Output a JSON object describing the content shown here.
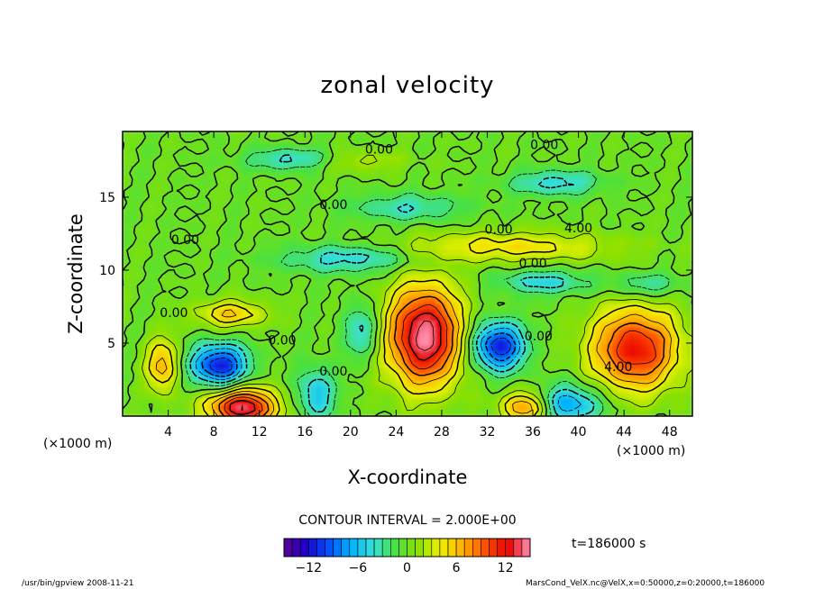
{
  "chart_data": {
    "type": "heatmap",
    "title": "zonal velocity",
    "xlabel": "X-coordinate",
    "ylabel": "Z-coordinate",
    "x_unit": "(×1000 m)",
    "y_unit": "(×1000 m)",
    "xlim": [
      0,
      50
    ],
    "ylim": [
      0,
      19.5
    ],
    "x_ticks": [
      4,
      8,
      12,
      16,
      20,
      24,
      28,
      32,
      36,
      40,
      44,
      48
    ],
    "y_ticks": [
      5,
      10,
      15
    ],
    "contour_interval_text": "CONTOUR INTERVAL = 2.000E+00",
    "contour_labels": [
      {
        "text": "0.00",
        "x": 22.5,
        "z": 18.3
      },
      {
        "text": "0.00",
        "x": 37.0,
        "z": 18.6
      },
      {
        "text": "0.00",
        "x": 18.5,
        "z": 14.5
      },
      {
        "text": "0.00",
        "x": 33.0,
        "z": 12.8
      },
      {
        "text": "4.00",
        "x": 40.0,
        "z": 12.9
      },
      {
        "text": "0.00",
        "x": 5.5,
        "z": 12.1
      },
      {
        "text": "0.00",
        "x": 36.0,
        "z": 10.5
      },
      {
        "text": "0.00",
        "x": 4.5,
        "z": 7.1
      },
      {
        "text": "0.00",
        "x": 14.0,
        "z": 5.2
      },
      {
        "text": "0.00",
        "x": 18.5,
        "z": 3.1
      },
      {
        "text": "0.00",
        "x": 36.5,
        "z": 5.5
      },
      {
        "text": "4.00",
        "x": 43.5,
        "z": 3.4
      }
    ],
    "features": [
      {
        "x": 26.5,
        "z": 5.5,
        "rx": 3.2,
        "rz": 3.4,
        "amp": 15
      },
      {
        "x": 45.0,
        "z": 4.6,
        "rx": 3.8,
        "rz": 2.8,
        "amp": 12
      },
      {
        "x": 10.5,
        "z": 0.6,
        "rx": 3.0,
        "rz": 1.3,
        "amp": 14
      },
      {
        "x": 35.5,
        "z": 0.6,
        "rx": 2.2,
        "rz": 1.1,
        "amp": 9
      },
      {
        "x": 3.5,
        "z": 3.5,
        "rx": 1.4,
        "rz": 1.8,
        "amp": 7
      },
      {
        "x": 9.5,
        "z": 7.0,
        "rx": 3.0,
        "rz": 0.9,
        "amp": 6
      },
      {
        "x": 34.0,
        "z": 11.6,
        "rx": 9.0,
        "rz": 1.0,
        "amp": 5
      },
      {
        "x": 8.5,
        "z": 3.5,
        "rx": 2.4,
        "rz": 1.4,
        "amp": -12
      },
      {
        "x": 33.0,
        "z": 4.8,
        "rx": 2.2,
        "rz": 1.6,
        "amp": -12
      },
      {
        "x": 39.0,
        "z": 0.8,
        "rx": 3.0,
        "rz": 1.3,
        "amp": -8
      },
      {
        "x": 17.0,
        "z": 1.5,
        "rx": 1.6,
        "rz": 1.8,
        "amp": -6
      },
      {
        "x": 21.0,
        "z": 5.8,
        "rx": 1.5,
        "rz": 1.8,
        "amp": -5
      },
      {
        "x": 15.0,
        "z": 17.6,
        "rx": 4.0,
        "rz": 0.7,
        "amp": -5
      },
      {
        "x": 38.0,
        "z": 16.0,
        "rx": 4.0,
        "rz": 0.8,
        "amp": -5
      },
      {
        "x": 25.0,
        "z": 14.3,
        "rx": 5.0,
        "rz": 0.9,
        "amp": -4
      },
      {
        "x": 20.0,
        "z": 10.8,
        "rx": 6.0,
        "rz": 0.9,
        "amp": -5
      },
      {
        "x": 37.0,
        "z": 9.2,
        "rx": 4.0,
        "rz": 0.8,
        "amp": -5
      },
      {
        "x": 46.0,
        "z": 9.0,
        "rx": 3.0,
        "rz": 0.8,
        "amp": -4
      },
      {
        "x": 20.5,
        "z": 17.5,
        "rx": 4.0,
        "rz": 0.7,
        "amp": 3
      }
    ],
    "colorbar": {
      "min": -15,
      "max": 15,
      "tick_values": [
        -12,
        -6,
        0,
        6,
        12
      ],
      "tick_labels": [
        "−12",
        "−6",
        "0",
        "6",
        "12"
      ],
      "colors": [
        "#5a0090",
        "#1c00c8",
        "#0050ff",
        "#00b4ff",
        "#38e0d8",
        "#48e040",
        "#8ce000",
        "#f0f000",
        "#ffb000",
        "#ff5000",
        "#e80000",
        "#ff90b0"
      ]
    },
    "time_label": "t=186000 s",
    "footer_left": "/usr/bin/gpview  2008-11-21",
    "footer_right": "MarsCond_VelX.nc@VelX,x=0:50000,z=0:20000,t=186000"
  }
}
